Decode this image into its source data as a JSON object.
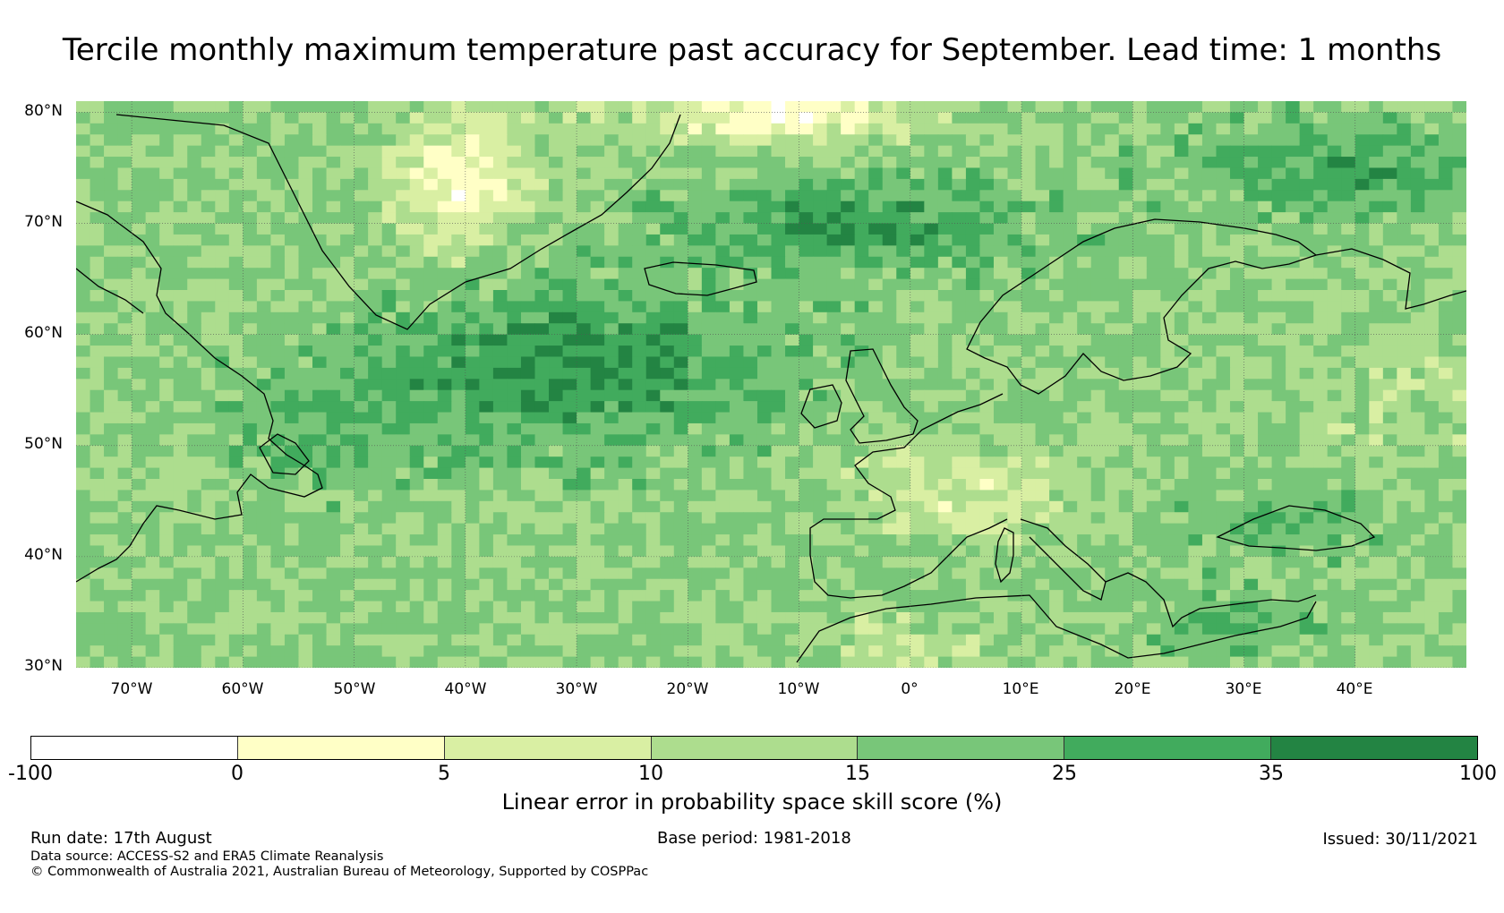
{
  "title": "Tercile monthly maximum temperature past accuracy for September. Lead time: 1 months",
  "map": {
    "region": "North Atlantic and Europe",
    "lat_range": [
      30,
      81
    ],
    "lon_range": [
      -75,
      50
    ],
    "lat_labels": [
      "80°N",
      "70°N",
      "60°N",
      "50°N",
      "40°N",
      "30°N"
    ],
    "lon_labels": [
      "70°W",
      "60°W",
      "50°W",
      "40°W",
      "30°W",
      "20°W",
      "10°W",
      "0°",
      "10°E",
      "20°E",
      "30°E",
      "40°E"
    ],
    "grid": true,
    "coastlines": true
  },
  "legend": {
    "title": "Linear error in probability space skill score (%)",
    "ticks": [
      "-100",
      "0",
      "5",
      "10",
      "15",
      "25",
      "35",
      "100"
    ],
    "colors": [
      "#ffffff",
      "#ffffc6",
      "#d9efa3",
      "#addd8e",
      "#78c679",
      "#41ab5d",
      "#238443"
    ]
  },
  "footer": {
    "run_date": "Run date: 17th August",
    "base_period": "Base period: 1981-2018",
    "issued": "Issued: 30/11/2021",
    "data_source": "Data source: ACCESS-S2 and ERA5 Climate Reanalysis",
    "copyright": "© Commonwealth of Australia 2021, Australian Bureau of Meteorology, Supported by COSPPac"
  }
}
